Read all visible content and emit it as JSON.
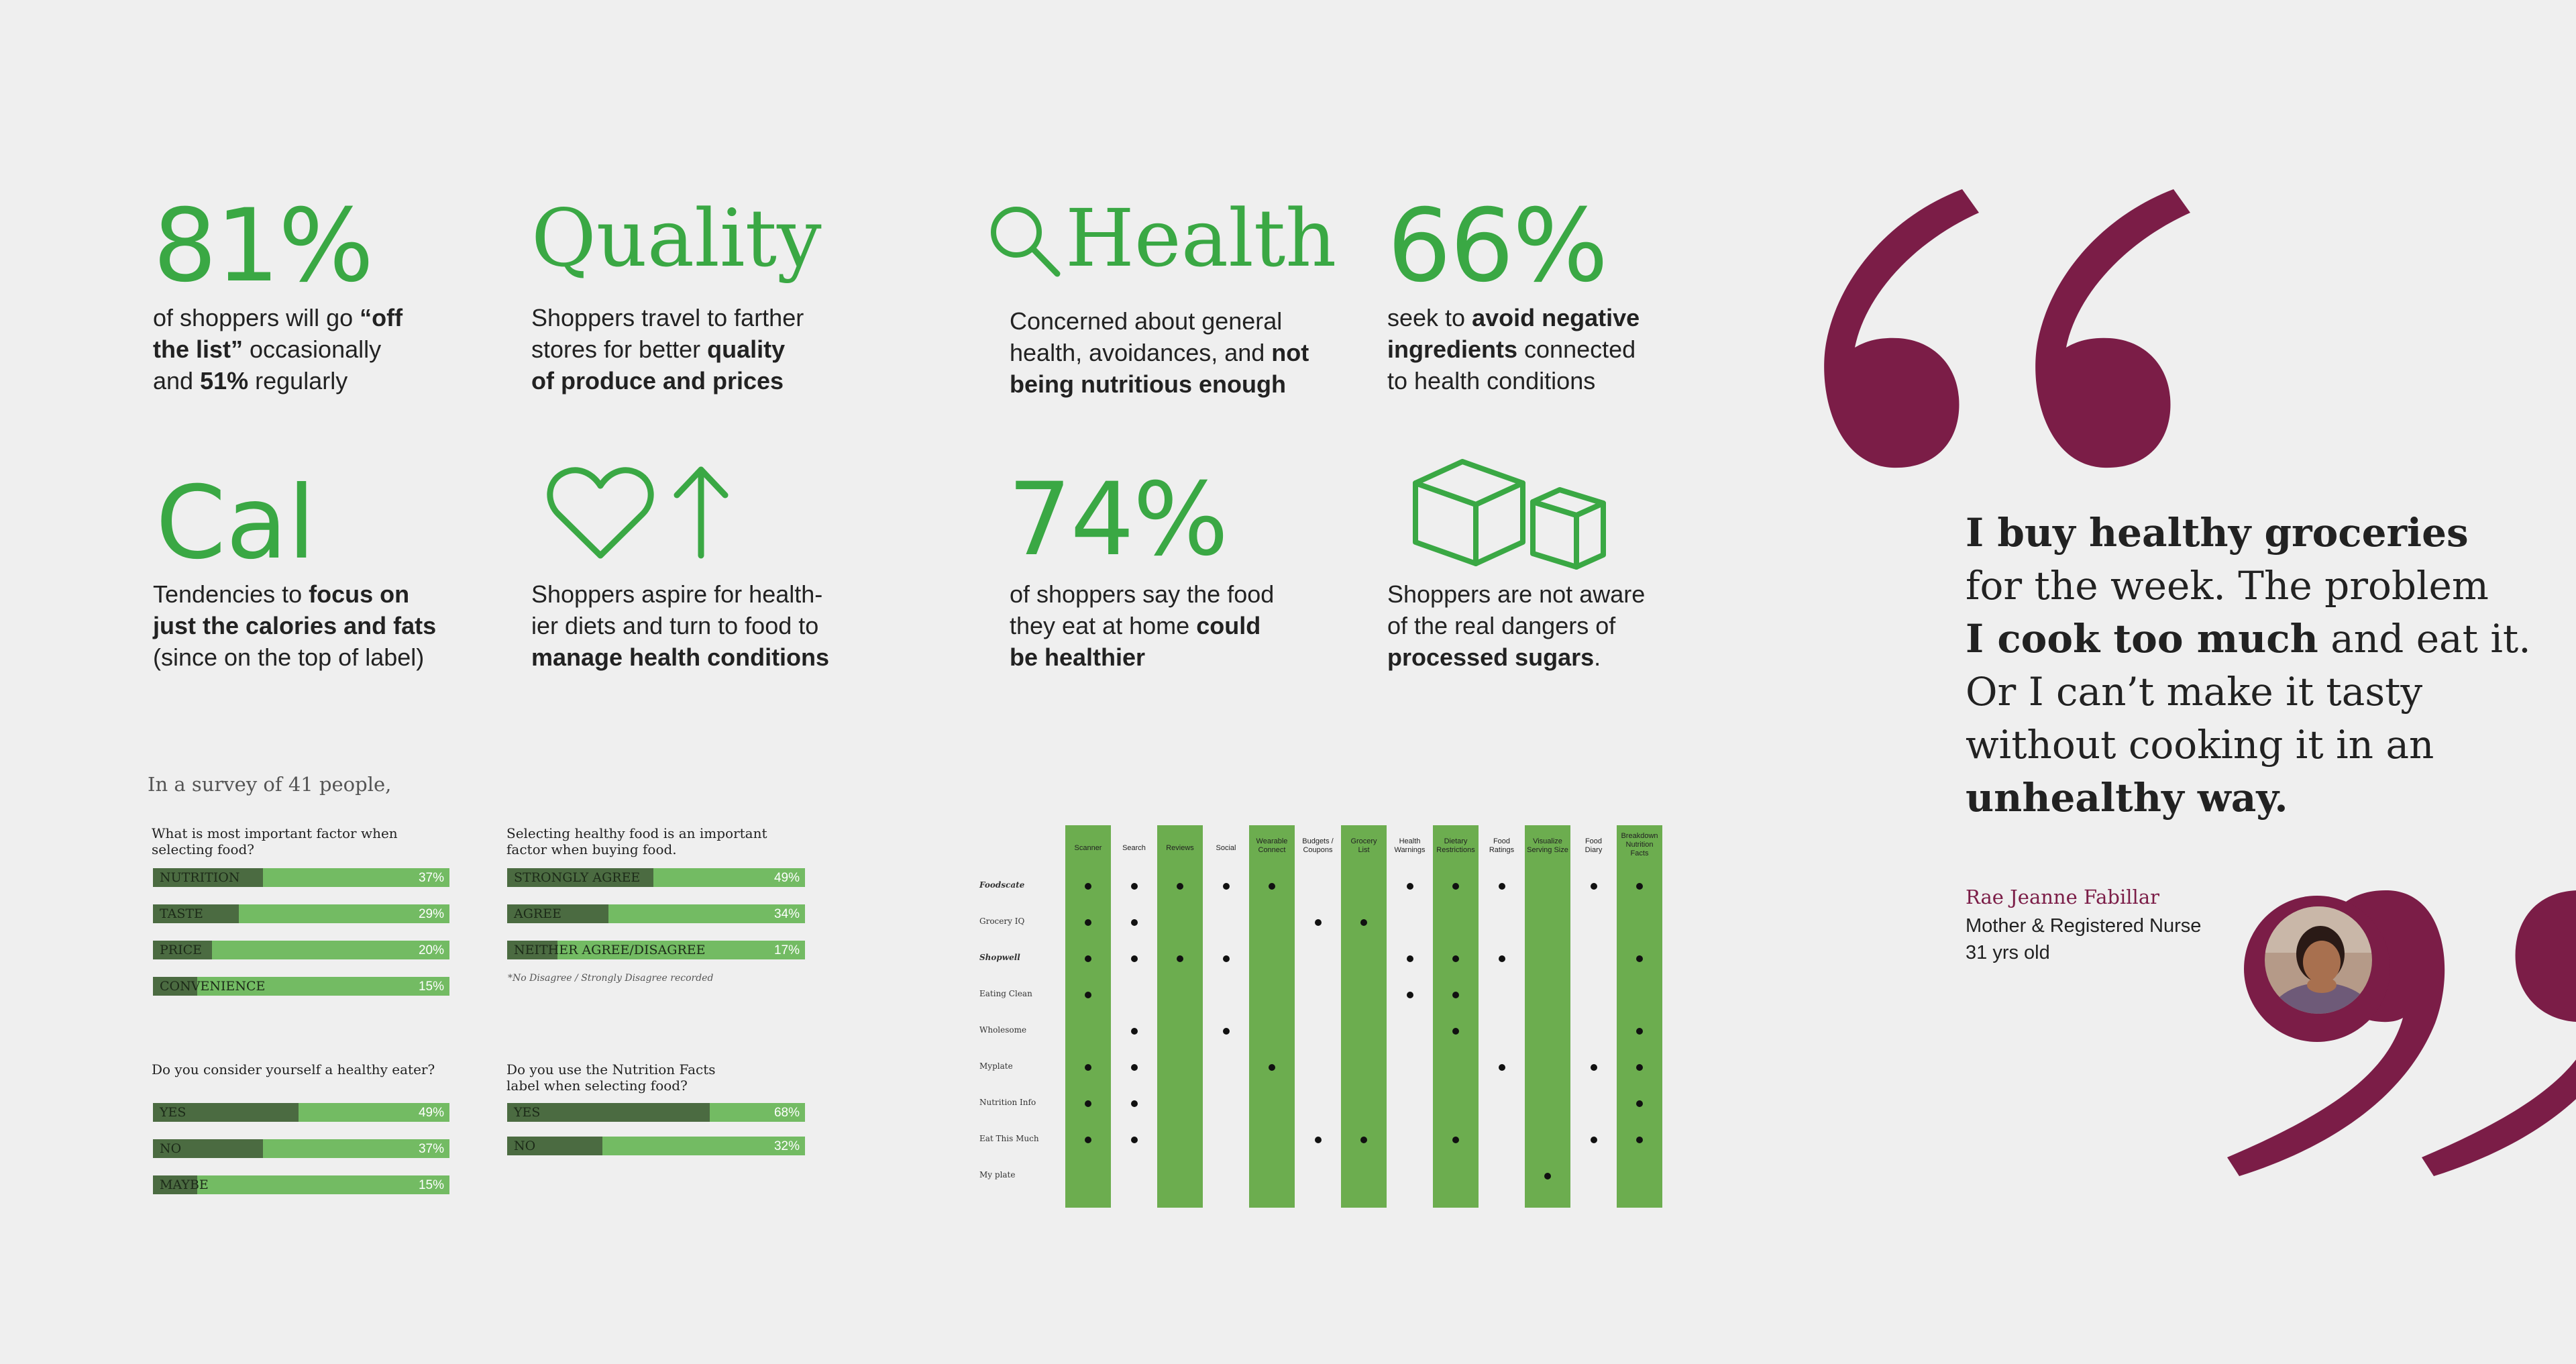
{
  "stats": [
    {
      "headline": "81%",
      "lines": [
        [
          "of shoppers will go ",
          "“off"
        ],
        [
          "the list”",
          " occasionally"
        ],
        [
          "and ",
          "51%",
          " regularly"
        ]
      ]
    },
    {
      "headline": "Quality"
    },
    {
      "headline": "Health"
    },
    {
      "headline": "66%"
    },
    {
      "headline": "Cal"
    },
    {
      "headline": "74%"
    }
  ],
  "stat_81": {
    "headline": "81%",
    "l1a": "of shoppers will go ",
    "l1b": "“off",
    "l2a": "the list”",
    "l2b": " occasionally",
    "l3a": "and ",
    "l3b": "51%",
    "l3c": " regularly"
  },
  "stat_quality": {
    "headline": "Quality",
    "l1": "Shoppers travel to farther",
    "l2a": "stores for better ",
    "l2b": "quality",
    "l3": "of produce and prices"
  },
  "stat_health": {
    "headline": "Health",
    "l1": "Concerned about general",
    "l2a": "health, avoidances, and ",
    "l2b": "not",
    "l3": "being nutritious enough"
  },
  "stat_66": {
    "headline": "66%",
    "l1a": "seek to ",
    "l1b": "avoid negative",
    "l2a": "ingredients",
    "l2b": " connected",
    "l3": "to health conditions"
  },
  "stat_cal": {
    "headline": "Cal",
    "l1a": "Tendencies to ",
    "l1b": "focus on",
    "l2": "just the calories and fats",
    "l3": "(since on the top of label)"
  },
  "stat_heart": {
    "l1": "Shoppers aspire for health-",
    "l2": "ier diets and turn to food to",
    "l3": "manage health conditions"
  },
  "stat_74": {
    "headline": "74%",
    "l1": "of shoppers say the food",
    "l2a": "they eat at home ",
    "l2b": "could",
    "l3": "be healthier"
  },
  "stat_boxes": {
    "l1": "Shoppers are not aware",
    "l2": "of the real dangers of",
    "l3a": "processed sugars",
    "l3b": "."
  },
  "survey": {
    "title": "In a survey of 41 people,",
    "q1": {
      "text1": "What is most important factor when",
      "text2": "selecting food?",
      "rows": [
        {
          "label": "NUTRITION",
          "pct": "37%",
          "value": 37
        },
        {
          "label": "TASTE",
          "pct": "29%",
          "value": 29
        },
        {
          "label": "PRICE",
          "pct": "20%",
          "value": 20
        },
        {
          "label": "CONVENIENCE",
          "pct": "15%",
          "value": 15
        }
      ]
    },
    "q2": {
      "text1": "Selecting healthy food is an important",
      "text2": "factor when buying food.",
      "rows": [
        {
          "label": "STRONGLY AGREE",
          "pct": "49%",
          "value": 49
        },
        {
          "label": "AGREE",
          "pct": "34%",
          "value": 34
        },
        {
          "label": "NEITHER AGREE/DISAGREE",
          "pct": "17%",
          "value": 17
        }
      ],
      "footnote": "*No Disagree / Strongly Disagree recorded"
    },
    "q3": {
      "text1": "Do you consider yourself a healthy eater?",
      "rows": [
        {
          "label": "YES",
          "pct": "49%",
          "value": 49
        },
        {
          "label": "NO",
          "pct": "37%",
          "value": 37
        },
        {
          "label": "MAYBE",
          "pct": "15%",
          "value": 15
        }
      ]
    },
    "q4": {
      "text1": "Do you use the Nutrition Facts",
      "text2": "label when selecting food?",
      "rows": [
        {
          "label": "YES",
          "pct": "68%",
          "value": 68
        },
        {
          "label": "NO",
          "pct": "32%",
          "value": 32
        }
      ]
    }
  },
  "matrix": {
    "columns": [
      {
        "l1": "Scanner",
        "green": true
      },
      {
        "l1": "Search",
        "green": false
      },
      {
        "l1": "Reviews",
        "green": true
      },
      {
        "l1": "Social",
        "green": false
      },
      {
        "l1": "Wearable",
        "l2": "Connect",
        "green": true
      },
      {
        "l1": "Budgets /",
        "l2": "Coupons",
        "green": false
      },
      {
        "l1": "Grocery",
        "l2": "List",
        "green": true
      },
      {
        "l1": "Health",
        "l2": "Warnings",
        "green": false
      },
      {
        "l1": "Dietary",
        "l2": "Restrictions",
        "green": true
      },
      {
        "l1": "Food",
        "l2": "Ratings",
        "green": false
      },
      {
        "l1": "Visualize",
        "l2": "Serving Size",
        "green": true
      },
      {
        "l1": "Food",
        "l2": "Diary",
        "green": false
      },
      {
        "l1": "Breakdown",
        "l2": "Nutrition",
        "l3": "Facts",
        "green": true
      }
    ],
    "rows": [
      {
        "label": "Foodscate",
        "bold": true,
        "dots": [
          0,
          1,
          2,
          3,
          4,
          7,
          8,
          9,
          11,
          12
        ]
      },
      {
        "label": "Grocery IQ",
        "bold": false,
        "dots": [
          0,
          1,
          5,
          6
        ]
      },
      {
        "label": "Shopwell",
        "bold": true,
        "dots": [
          0,
          1,
          2,
          3,
          7,
          8,
          9,
          12
        ]
      },
      {
        "label": "Eating Clean",
        "bold": false,
        "dots": [
          0,
          7,
          8
        ]
      },
      {
        "label": "Wholesome",
        "bold": false,
        "dots": [
          1,
          3,
          8,
          12
        ]
      },
      {
        "label": "Myplate",
        "bold": false,
        "dots": [
          0,
          1,
          4,
          9,
          11,
          12
        ]
      },
      {
        "label": "Nutrition Info",
        "bold": false,
        "dots": [
          0,
          1,
          12
        ]
      },
      {
        "label": "Eat This Much",
        "bold": false,
        "dots": [
          0,
          1,
          5,
          6,
          8,
          11,
          12
        ]
      },
      {
        "label": "My plate",
        "bold": false,
        "dots": [
          10
        ]
      }
    ]
  },
  "quote": {
    "l1b": "I buy healthy groceries",
    "l2": "for the week. The problem",
    "l3b": "I cook too much",
    "l3": " and eat it.",
    "l4": "Or I can’t make it tasty",
    "l5": "without cooking it in an",
    "l6b": "unhealthy way.",
    "name": "Rae Jeanne Fabillar",
    "role": "Mother & Registered Nurse",
    "age": "31 yrs old"
  },
  "colors": {
    "green": "#3aa844",
    "bar_light": "#73bb63",
    "bar_dark": "#4b6b41",
    "matrix_green": "#6cad4f",
    "quote_maroon": "#7b1d47"
  }
}
